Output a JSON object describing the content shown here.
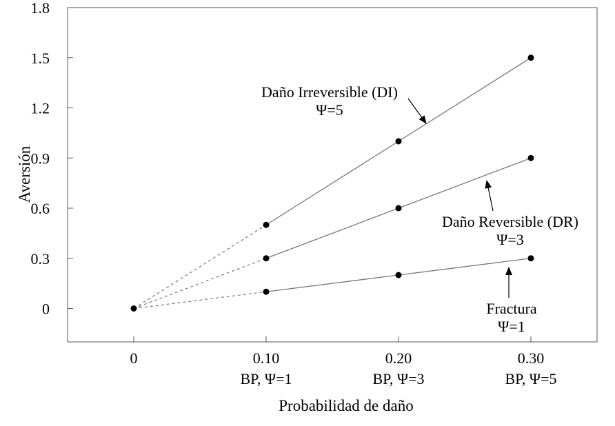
{
  "chart_data": {
    "type": "line",
    "xlabel": "Probabilidad de daño",
    "ylabel": "Aversión",
    "xlim": [
      -0.05,
      0.35
    ],
    "ylim": [
      -0.2,
      1.8
    ],
    "y_ticks": [
      "0",
      "0.3",
      "0.6",
      "0.9",
      "1.2",
      "1.5",
      "1.8"
    ],
    "y_tick_values": [
      0,
      0.3,
      0.6,
      0.9,
      1.2,
      1.5,
      1.8
    ],
    "x_ticks": [
      {
        "value": 0,
        "label": "0",
        "sublabel": ""
      },
      {
        "value": 0.1,
        "label": "0.10",
        "sublabel": "BP, Ψ=1"
      },
      {
        "value": 0.2,
        "label": "0.20",
        "sublabel": "BP, Ψ=3"
      },
      {
        "value": 0.3,
        "label": "0.30",
        "sublabel": "BP, Ψ=5"
      }
    ],
    "grid": false,
    "origin_point": {
      "x": 0,
      "y": 0
    },
    "series": [
      {
        "name": "Daño Irreversible (DI)",
        "psi": "Ψ=5",
        "x": [
          0.1,
          0.2,
          0.3
        ],
        "y": [
          0.5,
          1.0,
          1.5
        ]
      },
      {
        "name": "Daño Reversible (DR)",
        "psi": "Ψ=3",
        "x": [
          0.1,
          0.2,
          0.3
        ],
        "y": [
          0.3,
          0.6,
          0.9
        ]
      },
      {
        "name": "Fractura",
        "psi": "Ψ=1",
        "x": [
          0.1,
          0.2,
          0.3
        ],
        "y": [
          0.1,
          0.2,
          0.3
        ]
      }
    ],
    "dashed_extensions": "from origin (0,0) to first point of each series"
  }
}
